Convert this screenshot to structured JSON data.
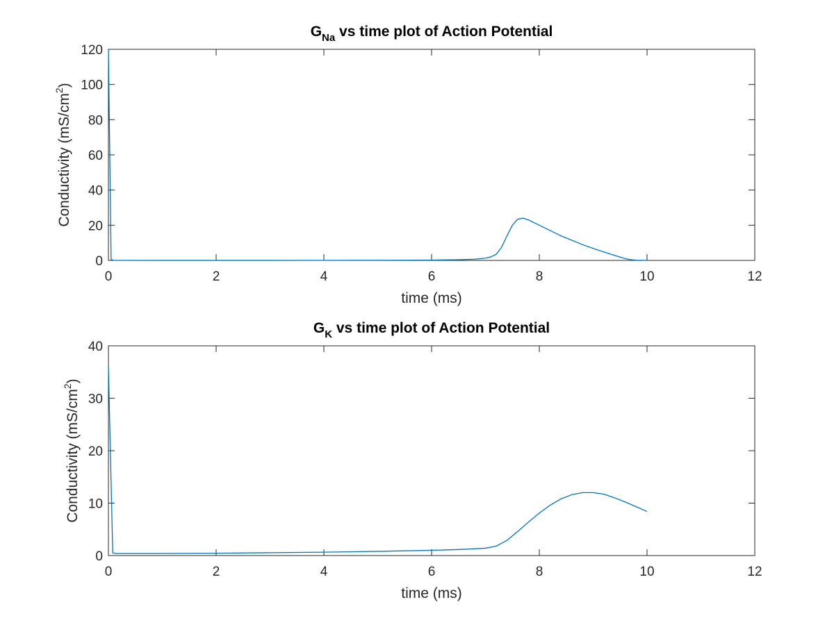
{
  "chart_data": [
    {
      "type": "line",
      "title": {
        "prefix": "G",
        "subscript": "Na",
        "rest": " vs time plot of Action Potential"
      },
      "xlabel": "time (ms)",
      "ylabel": {
        "prefix": "Conductivity (mS/cm",
        "superscript": "2",
        "suffix": ")"
      },
      "xlim": [
        0,
        12
      ],
      "ylim": [
        0,
        120
      ],
      "xticks": [
        0,
        2,
        4,
        6,
        8,
        10,
        12
      ],
      "yticks": [
        0,
        20,
        40,
        60,
        80,
        100,
        120
      ],
      "grid": false,
      "series": [
        {
          "color": "#0072BD",
          "x": [
            0,
            0.05,
            0.1,
            1,
            2,
            3,
            4,
            5,
            5.5,
            6,
            6.5,
            6.8,
            7,
            7.1,
            7.2,
            7.3,
            7.4,
            7.5,
            7.6,
            7.7,
            7.8,
            7.9,
            8,
            8.2,
            8.4,
            8.6,
            8.8,
            9,
            9.2,
            9.4,
            9.6,
            9.7,
            9.8,
            10
          ],
          "y": [
            120,
            0.5,
            0.05,
            0.02,
            0.02,
            0.03,
            0.05,
            0.08,
            0.12,
            0.2,
            0.4,
            0.7,
            1.3,
            2.0,
            3.5,
            7.5,
            14,
            20,
            23.5,
            24,
            23,
            21.5,
            20,
            17,
            14,
            11.5,
            9,
            6.8,
            4.8,
            2.8,
            1.0,
            0.4,
            0.15,
            0.05
          ]
        }
      ]
    },
    {
      "type": "line",
      "title": {
        "prefix": "G",
        "subscript": "K",
        "rest": " vs time plot of Action Potential"
      },
      "xlabel": "time (ms)",
      "ylabel": {
        "prefix": "Conductivity (mS/cm",
        "superscript": "2",
        "suffix": ")"
      },
      "xlim": [
        0,
        12
      ],
      "ylim": [
        0,
        40
      ],
      "xticks": [
        0,
        2,
        4,
        6,
        8,
        10,
        12
      ],
      "yticks": [
        0,
        10,
        20,
        30,
        40
      ],
      "grid": false,
      "series": [
        {
          "color": "#0072BD",
          "x": [
            0,
            0.08,
            0.15,
            1,
            2,
            3,
            4,
            5,
            6,
            6.5,
            7,
            7.2,
            7.4,
            7.6,
            7.8,
            8,
            8.2,
            8.4,
            8.6,
            8.8,
            9,
            9.2,
            9.4,
            9.6,
            9.8,
            10
          ],
          "y": [
            36,
            0.5,
            0.4,
            0.4,
            0.45,
            0.55,
            0.65,
            0.8,
            1.0,
            1.15,
            1.4,
            1.8,
            2.9,
            4.6,
            6.4,
            8.1,
            9.6,
            10.8,
            11.6,
            12.0,
            12.0,
            11.7,
            11.0,
            10.2,
            9.3,
            8.4
          ]
        }
      ]
    }
  ]
}
